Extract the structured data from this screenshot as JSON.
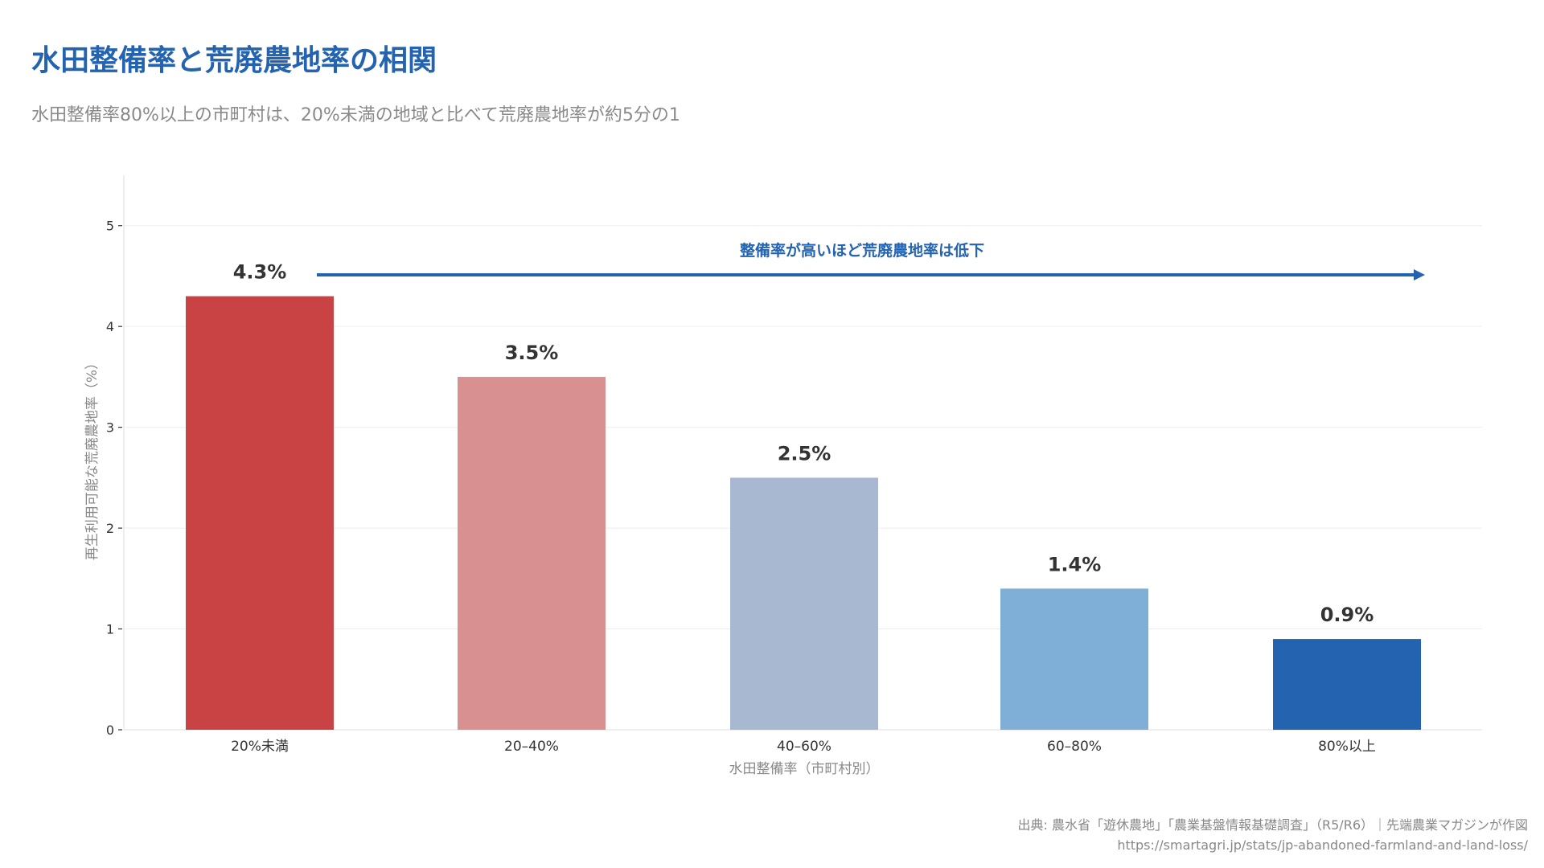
{
  "header": {
    "title": "水田整備率と荒廃農地率の相関",
    "subtitle": "水田整備率80%以上の市町村は、20%未満の地域と比べて荒廃農地率が約5分の1"
  },
  "chart_data": {
    "type": "bar",
    "categories": [
      "20%未満",
      "20–40%",
      "40–60%",
      "60–80%",
      "80%以上"
    ],
    "values": [
      4.3,
      3.5,
      2.5,
      1.4,
      0.9
    ],
    "data_labels": [
      "4.3%",
      "3.5%",
      "2.5%",
      "1.4%",
      "0.9%"
    ],
    "colors": [
      "#C94244",
      "#D89090",
      "#A8B8D0",
      "#7FAED6",
      "#2363B0"
    ],
    "xlabel": "水田整備率（市町村別）",
    "ylabel": "再生利用可能な荒廃農地率（%）",
    "ylim": [
      0,
      5.5
    ],
    "yticks": [
      0,
      1,
      2,
      3,
      4,
      5
    ],
    "grid": true,
    "annotation": {
      "text": "整備率が高いほど荒廃農地率は低下",
      "color": "#2363B0"
    }
  },
  "footer": {
    "source": "出典: 農水省「遊休農地」「農業基盤情報基礎調査」（R5/R6）｜先端農業マガジンが作図",
    "url": "https://smartagri.jp/stats/jp-abandoned-farmland-and-land-loss/"
  }
}
